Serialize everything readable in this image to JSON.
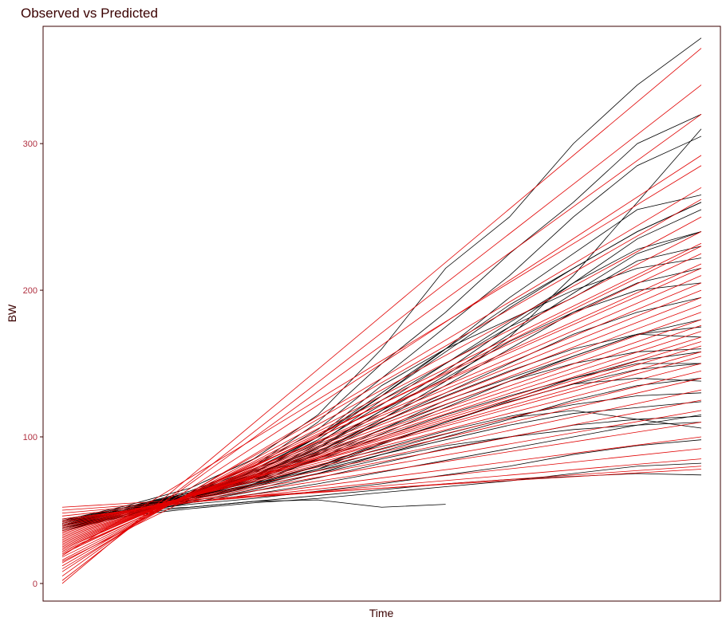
{
  "chart_data": {
    "type": "line",
    "title": "Observed vs Predicted",
    "xlabel": "Time",
    "ylabel": "BW",
    "ylim": [
      -12,
      380
    ],
    "xlim": [
      -0.3,
      10.3
    ],
    "y_ticks": [
      0,
      100,
      200,
      300
    ],
    "x_ticks_shown": false,
    "grid": false,
    "legend": "none",
    "colors": {
      "observed": "#000000",
      "predicted": "#e00000",
      "tick_labels": "#b03040",
      "text": "#3a0000"
    },
    "x": [
      0,
      1,
      2,
      3,
      4,
      5,
      6,
      7,
      8,
      9,
      10
    ],
    "observed_series": [
      {
        "values": [
          40,
          50,
          62,
          80,
          110,
          150,
          185,
          225,
          260,
          300,
          320
        ]
      },
      {
        "values": [
          38,
          48,
          60,
          75,
          100,
          135,
          160,
          190,
          215,
          240,
          260
        ]
      },
      {
        "values": [
          42,
          52,
          63,
          80,
          105,
          140,
          175,
          210,
          250,
          285,
          305
        ]
      },
      {
        "values": [
          36,
          46,
          58,
          72,
          95,
          125,
          150,
          175,
          195,
          220,
          230
        ]
      },
      {
        "values": [
          41,
          50,
          60,
          73,
          92,
          118,
          140,
          165,
          185,
          200,
          205
        ]
      },
      {
        "values": [
          39,
          49,
          58,
          70,
          88,
          110,
          130,
          150,
          170,
          185,
          195
        ]
      },
      {
        "values": [
          43,
          53,
          65,
          85,
          115,
          160,
          215,
          250,
          300,
          340,
          372
        ]
      },
      {
        "values": [
          37,
          47,
          57,
          68,
          85,
          105,
          125,
          140,
          155,
          170,
          175
        ]
      },
      {
        "values": [
          40,
          49,
          57,
          66,
          78,
          95,
          110,
          125,
          140,
          150,
          150
        ]
      },
      {
        "values": [
          38,
          48,
          56,
          64,
          75,
          88,
          100,
          112,
          125,
          135,
          140
        ]
      },
      {
        "values": [
          42,
          51,
          59,
          67,
          77,
          88,
          98,
          108,
          116,
          120,
          124
        ]
      },
      {
        "values": [
          39,
          48,
          55,
          61,
          68,
          76,
          84,
          92,
          100,
          108,
          115
        ]
      },
      {
        "values": [
          41,
          49,
          54,
          58,
          63,
          68,
          74,
          80,
          88,
          94,
          98
        ]
      },
      {
        "values": [
          40,
          47,
          52,
          56,
          60,
          64,
          68,
          71,
          73,
          75,
          74
        ]
      },
      {
        "values": [
          38,
          46,
          51,
          55,
          58,
          62,
          66,
          70,
          75,
          80,
          82
        ]
      },
      {
        "values": [
          44,
          50,
          52,
          56,
          57,
          52,
          54
        ]
      },
      {
        "values": [
          40,
          50,
          60,
          72,
          90,
          112,
          135,
          160,
          185,
          205,
          215
        ]
      },
      {
        "values": [
          37,
          48,
          60,
          76,
          98,
          128,
          160,
          195,
          225,
          255,
          265
        ]
      },
      {
        "values": [
          42,
          52,
          62,
          74,
          90,
          110,
          128,
          145,
          160,
          170,
          168
        ]
      },
      {
        "values": [
          39,
          49,
          59,
          70,
          84,
          100,
          115,
          128,
          140,
          152,
          158
        ]
      },
      {
        "values": [
          41,
          51,
          61,
          74,
          92,
          116,
          142,
          170,
          198,
          225,
          240
        ]
      },
      {
        "values": [
          38,
          48,
          57,
          67,
          80,
          96,
          110,
          124,
          136,
          140,
          138
        ]
      },
      {
        "values": [
          40,
          50,
          61,
          77,
          100,
          130,
          160,
          180,
          200,
          215,
          222
        ]
      },
      {
        "values": [
          43,
          52,
          60,
          69,
          80,
          92,
          104,
          114,
          122,
          128,
          130
        ]
      },
      {
        "values": [
          36,
          47,
          58,
          71,
          89,
          112,
          138,
          168,
          210,
          260,
          310
        ]
      },
      {
        "values": [
          41,
          50,
          58,
          66,
          75,
          85,
          94,
          100,
          105,
          108,
          110
        ]
      },
      {
        "values": [
          39,
          49,
          60,
          74,
          93,
          118,
          145,
          175,
          205,
          235,
          255
        ]
      },
      {
        "values": [
          42,
          51,
          59,
          68,
          78,
          90,
          102,
          113,
          118,
          112,
          106
        ]
      },
      {
        "values": [
          40,
          50,
          60,
          71,
          85,
          102,
          120,
          138,
          155,
          170,
          180
        ]
      },
      {
        "values": [
          38,
          47,
          55,
          63,
          72,
          82,
          92,
          100,
          108,
          112,
          114
        ]
      },
      {
        "values": [
          41,
          51,
          62,
          76,
          96,
          122,
          150,
          178,
          205,
          228,
          240
        ]
      },
      {
        "values": [
          40,
          49,
          58,
          68,
          80,
          95,
          110,
          124,
          136,
          146,
          150
        ]
      },
      {
        "values": [
          39,
          50,
          62,
          78,
          100,
          128,
          158,
          188,
          215,
          240,
          260
        ]
      },
      {
        "values": [
          42,
          52,
          62,
          74,
          88,
          105,
          122,
          138,
          150,
          158,
          160
        ]
      }
    ],
    "predicted_series": [
      {
        "start": 0,
        "end": 365
      },
      {
        "start": 2,
        "end": 340
      },
      {
        "start": 5,
        "end": 320
      },
      {
        "start": 8,
        "end": 292
      },
      {
        "start": 10,
        "end": 270
      },
      {
        "start": 12,
        "end": 262
      },
      {
        "start": 14,
        "end": 250
      },
      {
        "start": 16,
        "end": 240
      },
      {
        "start": 18,
        "end": 232
      },
      {
        "start": 20,
        "end": 225
      },
      {
        "start": 21,
        "end": 218
      },
      {
        "start": 22,
        "end": 210
      },
      {
        "start": 24,
        "end": 205
      },
      {
        "start": 25,
        "end": 200
      },
      {
        "start": 26,
        "end": 195
      },
      {
        "start": 27,
        "end": 190
      },
      {
        "start": 28,
        "end": 185
      },
      {
        "start": 29,
        "end": 180
      },
      {
        "start": 30,
        "end": 176
      },
      {
        "start": 31,
        "end": 172
      },
      {
        "start": 32,
        "end": 168
      },
      {
        "start": 33,
        "end": 165
      },
      {
        "start": 34,
        "end": 162
      },
      {
        "start": 35,
        "end": 158
      },
      {
        "start": 36,
        "end": 155
      },
      {
        "start": 37,
        "end": 150
      },
      {
        "start": 38,
        "end": 145
      },
      {
        "start": 39,
        "end": 140
      },
      {
        "start": 40,
        "end": 132
      },
      {
        "start": 41,
        "end": 125
      },
      {
        "start": 42,
        "end": 118
      },
      {
        "start": 43,
        "end": 110
      },
      {
        "start": 44,
        "end": 100
      },
      {
        "start": 46,
        "end": 92
      },
      {
        "start": 48,
        "end": 85
      },
      {
        "start": 50,
        "end": 80
      },
      {
        "start": 52,
        "end": 78
      },
      {
        "start": 15,
        "end": 230
      },
      {
        "start": 23,
        "end": 215
      },
      {
        "start": 19,
        "end": 285
      }
    ]
  }
}
